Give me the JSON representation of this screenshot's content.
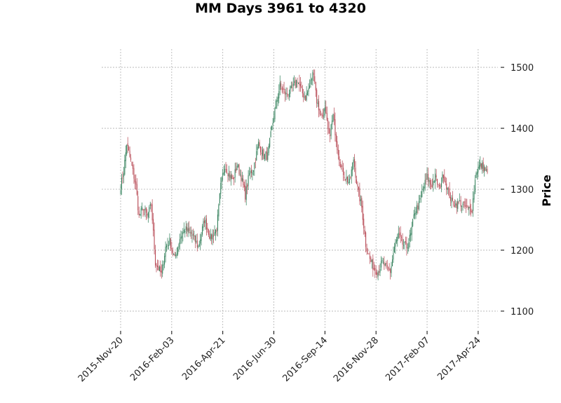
{
  "chart_data": {
    "type": "candlestick",
    "title": "MM Days 3961 to 4320",
    "xlabel": "",
    "ylabel": "Price",
    "grid": true,
    "ylim": [
      1070,
      1530
    ],
    "y_ticks": [
      1100,
      1200,
      1300,
      1400,
      1500
    ],
    "x_ticks": [
      {
        "index": 0,
        "label": "2015-Nov-20"
      },
      {
        "index": 50,
        "label": "2016-Feb-03"
      },
      {
        "index": 100,
        "label": "2016-Apr-21"
      },
      {
        "index": 150,
        "label": "2016-Jun-30"
      },
      {
        "index": 200,
        "label": "2016-Sep-14"
      },
      {
        "index": 250,
        "label": "2016-Nov-28"
      },
      {
        "index": 300,
        "label": "2017-Feb-07"
      },
      {
        "index": 350,
        "label": "2017-Apr-24"
      }
    ],
    "num_candles": 360,
    "up_color": "#2e7d57",
    "down_color": "#b5434f",
    "close_anchors": [
      [
        0,
        1305
      ],
      [
        3,
        1330
      ],
      [
        6,
        1375
      ],
      [
        10,
        1345
      ],
      [
        15,
        1305
      ],
      [
        18,
        1255
      ],
      [
        22,
        1270
      ],
      [
        26,
        1255
      ],
      [
        30,
        1275
      ],
      [
        34,
        1180
      ],
      [
        40,
        1160
      ],
      [
        44,
        1205
      ],
      [
        48,
        1215
      ],
      [
        53,
        1185
      ],
      [
        58,
        1220
      ],
      [
        63,
        1235
      ],
      [
        70,
        1225
      ],
      [
        76,
        1205
      ],
      [
        82,
        1250
      ],
      [
        88,
        1220
      ],
      [
        94,
        1235
      ],
      [
        98,
        1305
      ],
      [
        102,
        1340
      ],
      [
        106,
        1325
      ],
      [
        110,
        1315
      ],
      [
        114,
        1340
      ],
      [
        118,
        1320
      ],
      [
        122,
        1290
      ],
      [
        126,
        1325
      ],
      [
        130,
        1335
      ],
      [
        135,
        1375
      ],
      [
        140,
        1355
      ],
      [
        144,
        1355
      ],
      [
        148,
        1400
      ],
      [
        152,
        1440
      ],
      [
        156,
        1470
      ],
      [
        162,
        1455
      ],
      [
        168,
        1465
      ],
      [
        173,
        1480
      ],
      [
        177,
        1460
      ],
      [
        181,
        1450
      ],
      [
        185,
        1470
      ],
      [
        189,
        1495
      ],
      [
        192,
        1445
      ],
      [
        196,
        1420
      ],
      [
        200,
        1430
      ],
      [
        204,
        1385
      ],
      [
        208,
        1420
      ],
      [
        212,
        1370
      ],
      [
        216,
        1335
      ],
      [
        220,
        1320
      ],
      [
        224,
        1310
      ],
      [
        228,
        1350
      ],
      [
        232,
        1300
      ],
      [
        236,
        1270
      ],
      [
        240,
        1210
      ],
      [
        244,
        1185
      ],
      [
        248,
        1170
      ],
      [
        252,
        1165
      ],
      [
        256,
        1180
      ],
      [
        260,
        1170
      ],
      [
        264,
        1165
      ],
      [
        268,
        1205
      ],
      [
        272,
        1225
      ],
      [
        276,
        1210
      ],
      [
        280,
        1205
      ],
      [
        284,
        1225
      ],
      [
        288,
        1265
      ],
      [
        292,
        1275
      ],
      [
        296,
        1300
      ],
      [
        300,
        1320
      ],
      [
        304,
        1305
      ],
      [
        308,
        1320
      ],
      [
        312,
        1300
      ],
      [
        316,
        1325
      ],
      [
        320,
        1300
      ],
      [
        324,
        1280
      ],
      [
        328,
        1275
      ],
      [
        332,
        1278
      ],
      [
        336,
        1272
      ],
      [
        340,
        1268
      ],
      [
        344,
        1268
      ],
      [
        348,
        1330
      ],
      [
        352,
        1340
      ],
      [
        356,
        1335
      ],
      [
        359,
        1325
      ]
    ]
  }
}
